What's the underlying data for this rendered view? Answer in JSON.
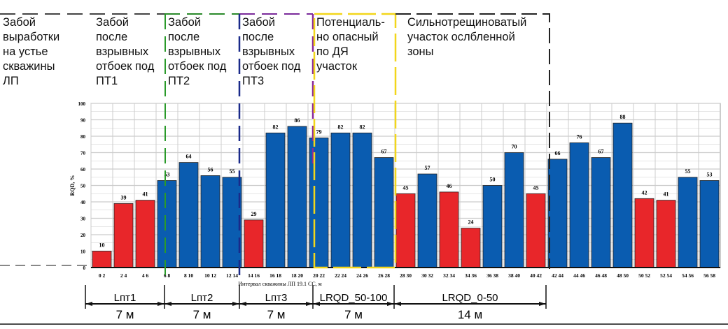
{
  "zones": [
    {
      "lines": [
        "Забой",
        "выработки",
        "на устье",
        "скважины",
        "ЛП"
      ]
    },
    {
      "lines": [
        "Забой",
        "после",
        "взрывных",
        "отбоек под",
        "ПТ1"
      ]
    },
    {
      "lines": [
        "Забой",
        "после",
        "взрывных",
        "отбоек под",
        "ПТ2"
      ]
    },
    {
      "lines": [
        "Забой",
        "после",
        "взрывных",
        "отбоек под",
        "ПТ3"
      ]
    },
    {
      "lines": [
        "Потенциаль-",
        "но опасный",
        "по ДЯ",
        "участок"
      ]
    },
    {
      "lines": [
        "Сильнотрещиноватый",
        "участок ослбленной",
        "зоны"
      ]
    }
  ],
  "chart_data": {
    "type": "bar",
    "title": "",
    "xlabel": "Интервал скважины ЛП 19.1 СС, м",
    "ylabel": "RQD, %",
    "ylim": [
      0,
      100
    ],
    "yticks": [
      0,
      10,
      20,
      30,
      40,
      50,
      60,
      70,
      80,
      90,
      100
    ],
    "grid": true,
    "categories": [
      "0 2",
      "2 4",
      "4 6",
      "6 8",
      "8 10",
      "10 12",
      "12 14",
      "14 16",
      "16 18",
      "18 20",
      "20 22",
      "22 24",
      "24 26",
      "26 28",
      "28 30",
      "30 32",
      "32 34",
      "34 36",
      "36 38",
      "38 40",
      "40 42",
      "42 44",
      "44 46",
      "46 48",
      "48 50",
      "50 52",
      "52 54",
      "54 56",
      "56 58"
    ],
    "values": [
      10,
      39,
      41,
      53,
      64,
      56,
      55,
      29,
      82,
      86,
      79,
      82,
      82,
      67,
      45,
      57,
      46,
      24,
      50,
      70,
      45,
      66,
      76,
      67,
      88,
      42,
      41,
      55,
      53
    ],
    "colors": {
      "low": "#e8262a",
      "high": "#0a5cb0"
    },
    "threshold": 50
  },
  "segments": [
    {
      "label": "Lпт1",
      "length": "7 м"
    },
    {
      "label": "Lпт2",
      "length": "7 м"
    },
    {
      "label": "Lпт3",
      "length": "7 м"
    },
    {
      "label": "LRQD_50-100",
      "length": "7 м"
    },
    {
      "label": "LRQD_0-50",
      "length": "14 м"
    }
  ]
}
